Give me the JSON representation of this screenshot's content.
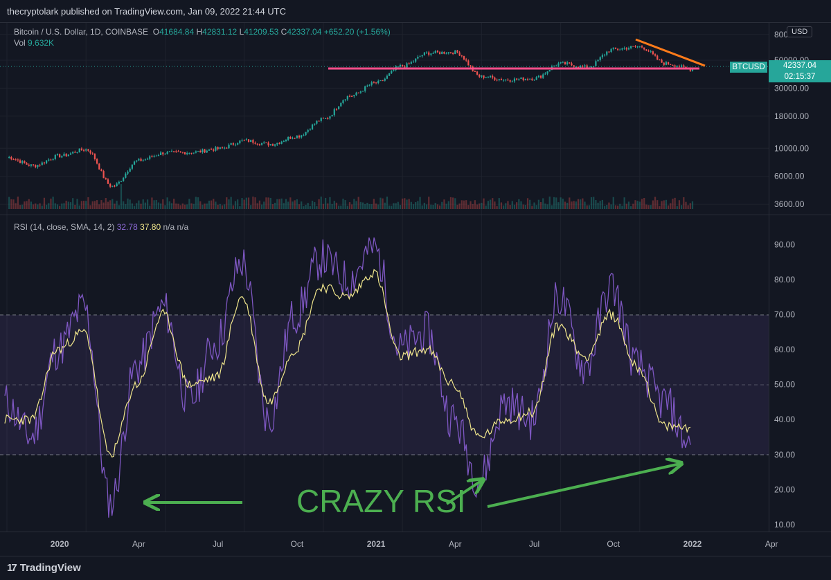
{
  "header": {
    "published_text": "thecryptolark published on TradingView.com, Jan 09, 2022 21:44 UTC"
  },
  "price_legend": {
    "symbol": "Bitcoin / U.S. Dollar, 1D, COINBASE",
    "o_label": "O",
    "o_value": "41684.84",
    "h_label": "H",
    "h_value": "42831.12",
    "l_label": "L",
    "l_value": "41209.53",
    "c_label": "C",
    "c_value": "42337.04",
    "change": "+652.20 (+1.56%)",
    "vol_label": "Vol",
    "vol_value": "9.632K"
  },
  "rsi_legend": {
    "label": "RSI (14, close, SMA, 14, 2)",
    "rsi_value": "32.78",
    "sma_value": "37.80",
    "na1": "n/a",
    "na2": "n/a"
  },
  "price_axis": {
    "currency_button": "USD",
    "ticks": [
      "80000.00",
      "50000.00",
      "30000.00",
      "18000.00",
      "10000.00",
      "6000.00",
      "3600.00"
    ],
    "last_price": "42337.04",
    "countdown": "02:15:37",
    "symbol_tag": "BTCUSD"
  },
  "rsi_axis": {
    "ticks": [
      "90.00",
      "80.00",
      "70.00",
      "60.00",
      "50.00",
      "40.00",
      "30.00",
      "20.00",
      "10.00"
    ]
  },
  "time_axis": {
    "labels": [
      "2020",
      "Apr",
      "Jul",
      "Oct",
      "2021",
      "Apr",
      "Jul",
      "Oct",
      "2022",
      "Apr"
    ]
  },
  "annotation": {
    "text": "CRAZY RSI"
  },
  "footer": {
    "brand": "TradingView"
  },
  "colors": {
    "background": "#131722",
    "up": "#26a69a",
    "down": "#ef5350",
    "rsi_line": "#7e57c2",
    "rsi_sma": "#f0e68c",
    "support_line": "#ff4f8b",
    "trend_line": "#ff7b1a",
    "annotation": "#4caf50"
  },
  "chart_data": [
    {
      "type": "line",
      "title": "Bitcoin / U.S. Dollar, 1D, COINBASE",
      "scale": "log",
      "ylim": [
        3300,
        85000
      ],
      "x": [
        "2019-11",
        "2019-12",
        "2020-01",
        "2020-02",
        "2020-03",
        "2020-04",
        "2020-05",
        "2020-06",
        "2020-07",
        "2020-08",
        "2020-09",
        "2020-10",
        "2020-11",
        "2020-12",
        "2021-01",
        "2021-02",
        "2021-03",
        "2021-04",
        "2021-05",
        "2021-06",
        "2021-07",
        "2021-08",
        "2021-09",
        "2021-10",
        "2021-11",
        "2021-12",
        "2022-01"
      ],
      "series": [
        {
          "values": [
            8500,
            7300,
            8700,
            9800,
            5000,
            8000,
            9200,
            9300,
            9900,
            11500,
            10800,
            12500,
            17000,
            26000,
            33000,
            45000,
            57000,
            58000,
            37000,
            35000,
            36000,
            47000,
            44000,
            61000,
            64000,
            47000,
            42337
          ]
        }
      ],
      "annotations": {
        "support": 42000,
        "trend_start": [
          "2021-11",
          68000
        ],
        "trend_end": [
          "2022-01",
          44000
        ]
      }
    },
    {
      "type": "line",
      "title": "RSI (14, close, SMA, 14, 2)",
      "ylim": [
        8,
        97
      ],
      "bands": [
        30,
        50,
        70
      ],
      "x": [
        "2019-11",
        "2019-12",
        "2020-01",
        "2020-02",
        "2020-03",
        "2020-04",
        "2020-05",
        "2020-06",
        "2020-07",
        "2020-08",
        "2020-09",
        "2020-10",
        "2020-11",
        "2020-12",
        "2021-01",
        "2021-02",
        "2021-03",
        "2021-04",
        "2021-05",
        "2021-06",
        "2021-07",
        "2021-08",
        "2021-09",
        "2021-10",
        "2021-11",
        "2021-12",
        "2022-01"
      ],
      "series": [
        {
          "values": [
            45,
            35,
            60,
            72,
            16,
            55,
            72,
            45,
            62,
            85,
            40,
            70,
            86,
            80,
            89,
            60,
            65,
            40,
            23,
            45,
            40,
            75,
            55,
            78,
            55,
            45,
            32.78
          ]
        },
        {
          "values": [
            40,
            40,
            60,
            65,
            30,
            50,
            70,
            50,
            52,
            75,
            45,
            60,
            78,
            75,
            82,
            58,
            60,
            50,
            35,
            40,
            42,
            67,
            58,
            70,
            55,
            38,
            37.8
          ]
        }
      ]
    }
  ]
}
